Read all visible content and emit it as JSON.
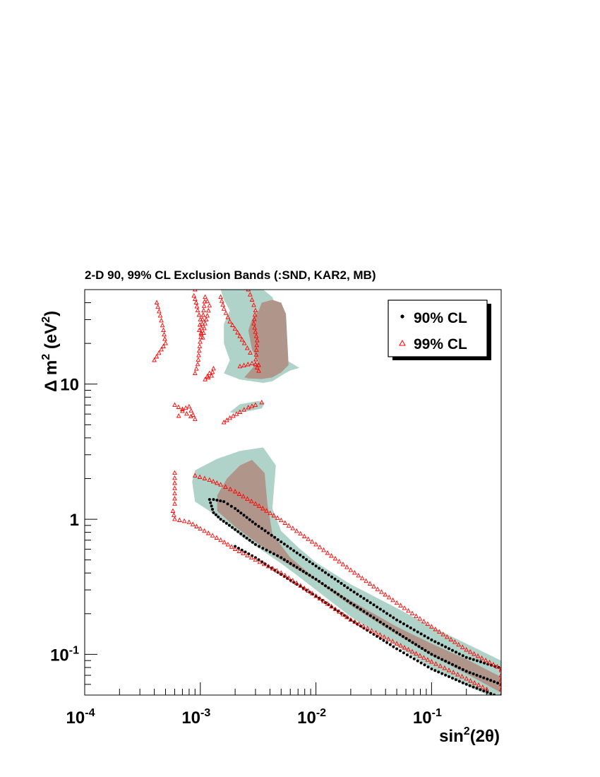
{
  "chart_data": {
    "type": "scatter",
    "title": "2-D 90, 99% CL Exclusion Bands (:SND, KAR2, MB)",
    "xlabel": {
      "base": "sin",
      "sup": "2",
      "rest": "(2θ)"
    },
    "ylabel": {
      "prefix": "Δ m",
      "sup": "2",
      "rest": " (eV",
      "sup2": "2",
      "close": ")"
    },
    "x_scale": "log",
    "y_scale": "log",
    "xlim": [
      0.0001,
      0.4
    ],
    "ylim": [
      0.05,
      50
    ],
    "grid": false,
    "legend_position": "top-right",
    "x_ticks": [
      {
        "value": 0.0001,
        "base": "10",
        "exp": "-4"
      },
      {
        "value": 0.001,
        "base": "10",
        "exp": "-3"
      },
      {
        "value": 0.01,
        "base": "10",
        "exp": "-2"
      },
      {
        "value": 0.1,
        "base": "10",
        "exp": "-1"
      }
    ],
    "y_ticks": [
      {
        "value": 0.1,
        "base": "10",
        "exp": "-1"
      },
      {
        "value": 1,
        "base": "1",
        "exp": ""
      },
      {
        "value": 10,
        "base": "10",
        "exp": ""
      }
    ],
    "colors": {
      "outer_band": "#b0d3c9",
      "inner_band": "#b0968a",
      "cl90": "#000000",
      "cl99": "#ff0000"
    },
    "bands": {
      "outer": [
        {
          "x": [
            0.0012,
            0.0016,
            0.0024,
            0.0035,
            0.005,
            0.007,
            0.01,
            0.02,
            0.05,
            0.1,
            0.2,
            0.4,
            0.4,
            0.2,
            0.1,
            0.05,
            0.02,
            0.01,
            0.007,
            0.005,
            0.0042,
            0.0045,
            0.0035,
            0.0022,
            0.0014,
            0.0009,
            0.00085,
            0.0009
          ],
          "y": [
            1.15,
            0.95,
            0.72,
            0.58,
            0.47,
            0.38,
            0.3,
            0.19,
            0.115,
            0.079,
            0.059,
            0.045,
            0.09,
            0.12,
            0.16,
            0.22,
            0.33,
            0.48,
            0.62,
            0.82,
            1.2,
            2.5,
            3.4,
            3.2,
            2.8,
            2.3,
            1.9,
            1.35
          ]
        },
        {
          "x": [
            0.0015,
            0.0016,
            0.0018,
            0.0016,
            0.0016,
            0.0018,
            0.0016,
            0.0022,
            0.0035,
            0.0042,
            0.0046,
            0.0052,
            0.006,
            0.0072,
            0.0056,
            0.0052,
            0.0048,
            0.005,
            0.0042,
            0.0045,
            0.0042,
            0.0035,
            0.0028,
            0.0018
          ],
          "y": [
            50,
            42,
            35,
            28,
            20,
            15,
            12,
            10.8,
            10.2,
            10.5,
            11,
            11.8,
            12.6,
            13.2,
            15,
            18,
            22,
            28,
            32,
            38,
            44,
            50,
            50,
            50
          ]
        },
        {
          "x": [
            0.0018,
            0.0022,
            0.0032,
            0.0036,
            0.0034,
            0.0026,
            0.002
          ],
          "y": [
            6.2,
            7.1,
            7.5,
            7.2,
            6.6,
            6.3,
            6.1
          ]
        }
      ],
      "inner": [
        {
          "x": [
            0.0014,
            0.002,
            0.003,
            0.005,
            0.01,
            0.02,
            0.05,
            0.1,
            0.2,
            0.4,
            0.4,
            0.2,
            0.1,
            0.05,
            0.02,
            0.01,
            0.006,
            0.0042,
            0.0038,
            0.0036,
            0.0028,
            0.0022,
            0.0017,
            0.0014
          ],
          "y": [
            1.15,
            0.88,
            0.68,
            0.5,
            0.35,
            0.23,
            0.14,
            0.098,
            0.072,
            0.052,
            0.068,
            0.092,
            0.12,
            0.16,
            0.25,
            0.36,
            0.52,
            0.78,
            1.3,
            2.2,
            2.75,
            2.5,
            2.0,
            1.5
          ]
        },
        {
          "x": [
            0.0024,
            0.0028,
            0.0032,
            0.0028,
            0.0026,
            0.0028,
            0.0032,
            0.0034,
            0.0042,
            0.005,
            0.0055,
            0.0058,
            0.005,
            0.0042,
            0.0034,
            0.0026
          ],
          "y": [
            11.2,
            13.0,
            14.8,
            18,
            25,
            30,
            35,
            40,
            42,
            40,
            33,
            13.8,
            12.2,
            11.2,
            10.9,
            11.0
          ]
        }
      ]
    },
    "series": [
      {
        "name": "90% CL",
        "marker": "dot",
        "color": "#000000",
        "curves": [
          {
            "x": [
              0.0012,
              0.0013,
              0.0015,
              0.002,
              0.003,
              0.005,
              0.01,
              0.02,
              0.05,
              0.1,
              0.2,
              0.4
            ],
            "y": [
              1.4,
              1.12,
              1.0,
              0.84,
              0.65,
              0.52,
              0.36,
              0.24,
              0.145,
              0.1,
              0.075,
              0.06
            ]
          },
          {
            "x": [
              0.0013,
              0.0016,
              0.002,
              0.003,
              0.005,
              0.01,
              0.02,
              0.05,
              0.1,
              0.2,
              0.38
            ],
            "y": [
              1.4,
              1.35,
              1.2,
              0.92,
              0.68,
              0.45,
              0.3,
              0.18,
              0.128,
              0.095,
              0.08
            ]
          },
          {
            "x": [
              0.002,
              0.003,
              0.005,
              0.01,
              0.02,
              0.05,
              0.1,
              0.2,
              0.4
            ],
            "y": [
              0.63,
              0.52,
              0.39,
              0.27,
              0.18,
              0.11,
              0.078,
              0.06,
              0.048
            ]
          }
        ]
      },
      {
        "name": "99% CL",
        "marker": "triangle",
        "color": "#ff0000",
        "curves": [
          {
            "x": [
              0.00058,
              0.0006,
              0.0008,
              0.001,
              0.0015,
              0.002,
              0.003,
              0.005,
              0.01,
              0.02,
              0.05,
              0.1,
              0.2,
              0.3
            ],
            "y": [
              1.15,
              1.0,
              0.95,
              0.85,
              0.7,
              0.6,
              0.5,
              0.4,
              0.27,
              0.18,
              0.12,
              0.088,
              0.066,
              0.055
            ]
          },
          {
            "x": [
              0.0009,
              0.0012,
              0.0015,
              0.002,
              0.003,
              0.005,
              0.01,
              0.02,
              0.05,
              0.1,
              0.2,
              0.4
            ],
            "y": [
              2.1,
              1.95,
              1.8,
              1.6,
              1.3,
              0.98,
              0.65,
              0.42,
              0.24,
              0.16,
              0.108,
              0.078
            ]
          },
          {
            "x": [
              0.0006,
              0.0006,
              0.0006,
              0.0006
            ],
            "y": [
              1.3,
              1.55,
              1.85,
              2.2
            ]
          },
          {
            "x": [
              0.0009,
              0.00088,
              0.00092,
              0.00095,
              0.001,
              0.00098,
              0.00105,
              0.0011,
              0.00115,
              0.0012,
              0.0011,
              0.00095,
              0.0009
            ],
            "y": [
              50,
              45,
              40,
              35,
              30,
              25,
              22,
              28,
              32,
              38,
              44,
              14,
              12
            ]
          },
          {
            "x": [
              0.0006,
              0.0007,
              0.0008,
              0.0009,
              0.0007,
              0.00065
            ],
            "y": [
              7,
              6.5,
              6.8,
              5.5,
              6.3,
              5.8
            ]
          },
          {
            "x": [
              0.0015,
              0.0016,
              0.0018,
              0.0021,
              0.0024,
              0.0027
            ],
            "y": [
              44,
              36,
              29,
              24,
              20,
              17
            ]
          },
          {
            "x": [
              0.0016,
              0.0018,
              0.0022,
              0.0026,
              0.003,
              0.0034
            ],
            "y": [
              5.2,
              5.6,
              6.2,
              6.7,
              7.0,
              7.3
            ]
          },
          {
            "x": [
              0.0026,
              0.0028,
              0.003,
              0.0029,
              0.0031,
              0.003,
              0.0032
            ],
            "y": [
              50,
              42,
              35,
              28,
              21,
              14,
              12.5
            ]
          },
          {
            "x": [
              0.0012,
              0.0011,
              0.00125,
              0.0013
            ],
            "y": [
              12,
              10.8,
              11.5,
              13
            ]
          },
          {
            "x": [
              0.00042,
              0.00045,
              0.00048,
              0.0005,
              0.00046,
              0.0004
            ],
            "y": [
              40,
              32,
              25,
              20,
              18,
              15
            ]
          },
          {
            "x": [
              0.4,
              0.4,
              0.4,
              0.4,
              0.4,
              0.4
            ],
            "y": [
              0.05,
              0.055,
              0.06,
              0.065,
              0.07,
              0.076
            ]
          },
          {
            "x": [
              0.0022,
              0.0028,
              0.0032
            ],
            "y": [
              13.5,
              14.2,
              13.8
            ]
          }
        ]
      }
    ]
  }
}
